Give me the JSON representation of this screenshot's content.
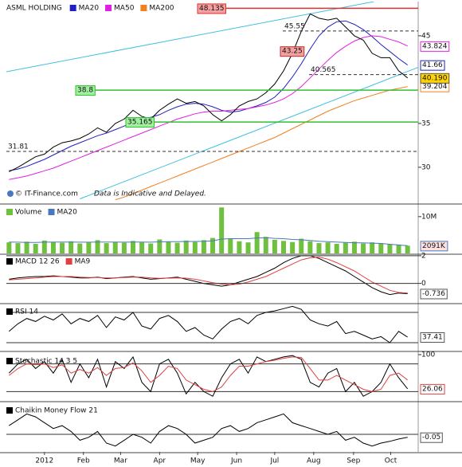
{
  "chart_data": [
    {
      "type": "line",
      "title": "ASML HOLDING",
      "source": "© IT-Finance.com",
      "note": "Data is Indicative and Delayed.",
      "x": [
        -4,
        -3,
        -2,
        -1,
        0,
        1,
        2,
        3,
        4,
        5,
        6,
        7,
        8,
        9,
        10,
        11,
        12,
        13,
        14,
        15,
        16,
        17,
        18,
        19,
        20,
        21,
        22,
        23,
        24,
        25,
        26,
        27,
        28,
        29,
        30,
        31,
        32,
        33,
        34,
        35,
        36,
        37,
        38,
        39,
        40,
        41
      ],
      "xlim": [
        -4.3,
        42.2
      ],
      "xticks": [
        {
          "value": 0,
          "label": "2012"
        },
        {
          "value": 4.4,
          "label": "Feb"
        },
        {
          "value": 8.6,
          "label": "Mar"
        },
        {
          "value": 13,
          "label": "Apr"
        },
        {
          "value": 17.3,
          "label": "May"
        },
        {
          "value": 21.7,
          "label": "Jun"
        },
        {
          "value": 26,
          "label": "Jul"
        },
        {
          "value": 30.4,
          "label": "Aug"
        },
        {
          "value": 34.9,
          "label": "Sep"
        },
        {
          "value": 39.1,
          "label": "Oct"
        }
      ],
      "ylim": [
        25.9,
        48.9
      ],
      "yticks": [
        30,
        35,
        45
      ],
      "grid": false,
      "series": [
        {
          "name": "MA20",
          "color": "#2020c0",
          "type": "line",
          "last_label": true,
          "values": [
            29.6,
            29.8,
            30.1,
            30.5,
            30.9,
            31.4,
            31.9,
            32.4,
            32.8,
            33.2,
            33.6,
            33.9,
            34.3,
            34.7,
            35.2,
            35.5,
            35.7,
            36.0,
            36.5,
            36.9,
            37.2,
            37.3,
            37.2,
            36.9,
            36.5,
            36.3,
            36.4,
            36.7,
            37.0,
            37.4,
            38.0,
            39.0,
            40.3,
            41.8,
            43.5,
            45.0,
            46.0,
            46.6,
            46.7,
            46.3,
            45.7,
            44.9,
            44.0,
            43.2,
            42.4,
            41.66
          ]
        },
        {
          "name": "MA50",
          "color": "#e020e0",
          "type": "line",
          "last_label": true,
          "values": [
            28.6,
            28.8,
            29.0,
            29.3,
            29.6,
            29.9,
            30.3,
            30.7,
            31.1,
            31.5,
            31.9,
            32.3,
            32.7,
            33.1,
            33.5,
            33.9,
            34.3,
            34.7,
            35.1,
            35.5,
            35.8,
            36.1,
            36.3,
            36.4,
            36.4,
            36.5,
            36.6,
            36.7,
            36.9,
            37.1,
            37.4,
            37.8,
            38.4,
            39.2,
            40.2,
            41.2,
            42.2,
            43.1,
            43.8,
            44.4,
            44.8,
            45.0,
            44.9,
            44.6,
            44.3,
            43.824
          ]
        },
        {
          "name": "MA200",
          "color": "#f08020",
          "type": "line",
          "last_label": true,
          "values": [
            null,
            null,
            null,
            null,
            null,
            null,
            null,
            null,
            null,
            null,
            null,
            null,
            26.3,
            26.6,
            27.0,
            27.4,
            27.8,
            28.2,
            28.6,
            29.0,
            29.4,
            29.8,
            30.2,
            30.6,
            31.0,
            31.4,
            31.8,
            32.2,
            32.6,
            33.0,
            33.4,
            33.9,
            34.4,
            34.9,
            35.4,
            35.9,
            36.4,
            36.8,
            37.2,
            37.6,
            37.9,
            38.2,
            38.5,
            38.8,
            39.0,
            39.204
          ]
        },
        {
          "color": "#000000",
          "type": "line",
          "last_label": true,
          "label_fill": "#ffd400",
          "values": [
            29.5,
            30.0,
            30.6,
            31.2,
            31.5,
            32.3,
            32.8,
            33.0,
            33.3,
            33.8,
            34.5,
            34.0,
            35.0,
            35.5,
            36.5,
            35.8,
            35.5,
            36.5,
            37.2,
            37.8,
            37.3,
            37.5,
            37.0,
            36.0,
            35.3,
            36.0,
            37.0,
            37.5,
            37.8,
            38.5,
            39.5,
            41.0,
            43.0,
            45.5,
            47.5,
            47.0,
            46.8,
            47.0,
            46.0,
            45.0,
            44.5,
            43.0,
            42.5,
            42.5,
            41.0,
            40.19
          ],
          "value_labels": [
            null,
            null,
            null,
            null,
            null,
            null,
            null,
            null,
            null,
            null,
            null,
            null,
            null,
            null,
            null,
            null,
            null,
            null,
            null,
            null,
            null,
            null,
            null,
            null,
            null,
            null,
            null,
            null,
            null,
            null,
            null,
            null,
            null,
            null,
            null,
            null,
            null,
            null,
            null,
            null,
            null,
            null,
            null,
            null,
            null,
            "40.190"
          ]
        }
      ],
      "levels": [
        {
          "value": 48.135,
          "color": "#e03030",
          "style": "solid",
          "label_fill": "#f4a0a0"
        },
        {
          "value": 45.55,
          "color": "#333333",
          "style": "dashed"
        },
        {
          "value": 40.565,
          "color": "#333333",
          "style": "dashed"
        },
        {
          "value": 38.8,
          "color": "#30c030",
          "style": "solid",
          "label_fill": "#a0f0a0"
        },
        {
          "value": 35.165,
          "color": "#30c030",
          "style": "solid",
          "label_fill": "#a0f0a0"
        },
        {
          "value": 31.81,
          "color": "#333333",
          "style": "dashed"
        }
      ],
      "annotations": [
        {
          "value": 43.25,
          "label_fill": "#f4a0a0"
        }
      ],
      "trendlines": [
        {
          "color": "#40c0e0",
          "x": [
            -4.3,
            37.2
          ],
          "y": [
            40.9,
            48.9
          ]
        },
        {
          "color": "#40c0e0",
          "x": [
            4,
            42.2
          ],
          "y": [
            26.4,
            41.4
          ]
        }
      ]
    },
    {
      "type": "bar",
      "ylim": [
        0,
        13000000
      ],
      "yticks": [
        {
          "value": 10000000,
          "label": "10M"
        }
      ],
      "grid": false,
      "series": [
        {
          "name": "Volume",
          "color": "#70c040",
          "type": "bar",
          "values": [
            3000000,
            2800000,
            3200000,
            2600000,
            3500000,
            3100000,
            2900000,
            3300000,
            2700000,
            3000000,
            3600000,
            2800000,
            3100000,
            2900000,
            3400000,
            3000000,
            2700000,
            3800000,
            3200000,
            2900000,
            3500000,
            3100000,
            3600000,
            4200000,
            12500000,
            3900000,
            3300000,
            3000000,
            5800000,
            4500000,
            3700000,
            3400000,
            3100000,
            4000000,
            3300000,
            2800000,
            3000000,
            2600000,
            2900000,
            3200000,
            2700000,
            3000000,
            2800000,
            2500000,
            2400000,
            2100000
          ]
        },
        {
          "name": "MA20",
          "color": "#4a78c0",
          "type": "line",
          "last_label": true,
          "label_fill": "#fde0e0",
          "values": [
            3100000,
            3050000,
            3000000,
            3000000,
            3050000,
            3100000,
            3100000,
            3100000,
            3050000,
            3050000,
            3100000,
            3100000,
            3100000,
            3050000,
            3100000,
            3100000,
            3050000,
            3150000,
            3200000,
            3200000,
            3250000,
            3250000,
            3300000,
            3400000,
            3900000,
            4000000,
            4000000,
            4000000,
            4200000,
            4300000,
            4100000,
            4000000,
            3800000,
            3700000,
            3500000,
            3300000,
            3200000,
            3100000,
            3000000,
            2900000,
            2850000,
            2800000,
            2700000,
            2500000,
            2300000,
            2091000
          ],
          "value_labels": [
            null,
            null,
            null,
            null,
            null,
            null,
            null,
            null,
            null,
            null,
            null,
            null,
            null,
            null,
            null,
            null,
            null,
            null,
            null,
            null,
            null,
            null,
            null,
            null,
            null,
            null,
            null,
            null,
            null,
            null,
            null,
            null,
            null,
            null,
            null,
            null,
            null,
            null,
            null,
            null,
            null,
            null,
            null,
            null,
            null,
            "2091K"
          ]
        }
      ]
    },
    {
      "type": "line",
      "ylim": [
        -1.4,
        2.05
      ],
      "yticks": [
        2,
        0
      ],
      "grid": true,
      "series": [
        {
          "name": "MACD 12 26",
          "color": "#000000",
          "type": "line",
          "last_label": true,
          "values": [
            0.3,
            0.4,
            0.45,
            0.5,
            0.5,
            0.55,
            0.5,
            0.45,
            0.4,
            0.4,
            0.45,
            0.35,
            0.4,
            0.45,
            0.5,
            0.4,
            0.3,
            0.35,
            0.4,
            0.45,
            0.3,
            0.15,
            0.0,
            -0.1,
            -0.2,
            -0.1,
            0.1,
            0.3,
            0.5,
            0.8,
            1.1,
            1.5,
            1.8,
            2.0,
            2.0,
            1.8,
            1.5,
            1.2,
            0.9,
            0.5,
            0.1,
            -0.3,
            -0.6,
            -0.8,
            -0.7,
            -0.736
          ]
        },
        {
          "name": "MA9",
          "color": "#e04040",
          "type": "line",
          "values": [
            0.25,
            0.3,
            0.35,
            0.4,
            0.45,
            0.5,
            0.5,
            0.5,
            0.45,
            0.42,
            0.42,
            0.4,
            0.4,
            0.42,
            0.45,
            0.45,
            0.4,
            0.37,
            0.38,
            0.4,
            0.38,
            0.3,
            0.18,
            0.05,
            -0.05,
            -0.1,
            -0.05,
            0.1,
            0.3,
            0.5,
            0.8,
            1.1,
            1.4,
            1.7,
            1.85,
            1.9,
            1.75,
            1.5,
            1.2,
            0.9,
            0.5,
            0.1,
            -0.2,
            -0.5,
            -0.65,
            -0.7
          ]
        }
      ]
    },
    {
      "type": "line",
      "ylim": [
        19.5,
        79.5
      ],
      "yticks": [],
      "levels": [
        70,
        30
      ],
      "series": [
        {
          "name": "RSI 14",
          "color": "#000000",
          "type": "line",
          "last_label": true,
          "values": [
            45,
            55,
            62,
            58,
            65,
            60,
            68,
            55,
            62,
            58,
            66,
            50,
            64,
            60,
            70,
            52,
            48,
            62,
            66,
            58,
            45,
            50,
            40,
            35,
            48,
            58,
            62,
            55,
            66,
            70,
            72,
            75,
            78,
            74,
            60,
            55,
            52,
            58,
            42,
            45,
            40,
            35,
            38,
            30,
            45,
            37.41
          ]
        }
      ]
    },
    {
      "type": "line",
      "ylim": [
        0,
        100
      ],
      "yticks": [
        100
      ],
      "levels": [
        80,
        20
      ],
      "series": [
        {
          "name": "Stochastic 14 3 5",
          "color": "#000000",
          "type": "line",
          "last_label": true,
          "label_color": "#e04040",
          "values": [
            60,
            80,
            90,
            70,
            85,
            60,
            90,
            40,
            80,
            50,
            90,
            30,
            85,
            70,
            95,
            40,
            20,
            80,
            90,
            60,
            15,
            40,
            20,
            10,
            50,
            80,
            90,
            60,
            95,
            85,
            90,
            95,
            98,
            90,
            40,
            30,
            60,
            70,
            20,
            40,
            10,
            20,
            40,
            80,
            50,
            26.06
          ]
        },
        {
          "color": "#e04040",
          "type": "line",
          "values": [
            55,
            70,
            80,
            78,
            80,
            72,
            78,
            60,
            68,
            60,
            72,
            55,
            70,
            72,
            82,
            65,
            40,
            55,
            75,
            70,
            45,
            35,
            25,
            20,
            30,
            55,
            75,
            75,
            80,
            85,
            88,
            92,
            95,
            94,
            70,
            45,
            45,
            55,
            45,
            35,
            25,
            20,
            25,
            55,
            60,
            45
          ]
        }
      ]
    },
    {
      "type": "line",
      "ylim": [
        -0.3,
        0.52
      ],
      "yticks": [],
      "levels": [
        0
      ],
      "series": [
        {
          "name": "Chaikin Money Flow 21",
          "color": "#000000",
          "type": "line",
          "last_label": true,
          "values": [
            0.15,
            0.25,
            0.35,
            0.3,
            0.2,
            0.1,
            0.15,
            0.05,
            -0.1,
            -0.05,
            0.05,
            -0.15,
            -0.2,
            -0.1,
            0.0,
            -0.05,
            -0.15,
            0.05,
            0.15,
            0.1,
            0.0,
            -0.15,
            -0.1,
            -0.05,
            0.1,
            0.15,
            0.05,
            0.1,
            0.2,
            0.25,
            0.3,
            0.35,
            0.2,
            0.15,
            0.1,
            0.05,
            0.0,
            0.05,
            -0.1,
            -0.05,
            -0.15,
            -0.2,
            -0.15,
            -0.12,
            -0.08,
            -0.05
          ]
        }
      ]
    }
  ]
}
